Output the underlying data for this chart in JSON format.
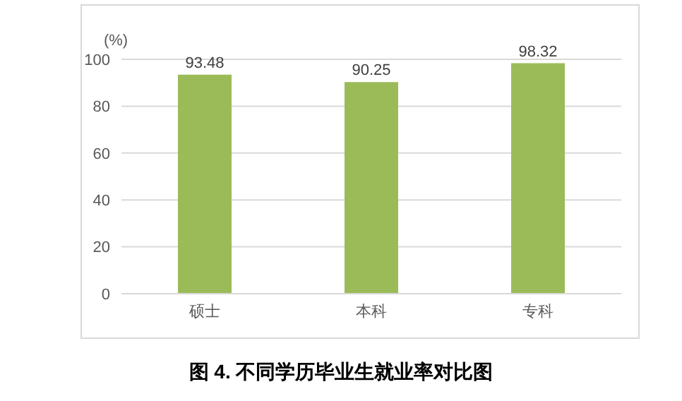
{
  "chart_data": {
    "type": "bar",
    "title": "图 4. 不同学历毕业生就业率对比图",
    "ylabel": "(%)",
    "categories": [
      "硕士",
      "本科",
      "专科"
    ],
    "values": [
      93.48,
      90.25,
      98.32
    ],
    "color": "#9bbb59",
    "ylim": [
      0,
      100
    ],
    "yticks": [
      0,
      20,
      40,
      60,
      80,
      100
    ],
    "grid": "y",
    "data_labels": true
  }
}
